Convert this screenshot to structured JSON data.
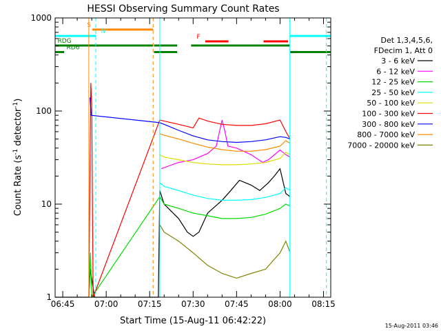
{
  "chart_data": {
    "type": "line",
    "title": "HESSI Observing Summary Count Rates",
    "xlabel": "Start Time (15-Aug-11 06:42:22)",
    "ylabel_main": "Count Rate (s",
    "ylabel_sup1": "-1",
    "ylabel_mid": " detector",
    "ylabel_sup2": "-1",
    "ylabel_end": ")",
    "yscale": "log",
    "ylim": [
      1,
      1000
    ],
    "xlim_minutes": [
      402.37,
      497.5
    ],
    "xticks": [
      {
        "label": "06:45",
        "t": 405
      },
      {
        "label": "07:00",
        "t": 420
      },
      {
        "label": "07:15",
        "t": 435
      },
      {
        "label": "07:30",
        "t": 450
      },
      {
        "label": "07:45",
        "t": 465
      },
      {
        "label": "08:00",
        "t": 480
      },
      {
        "label": "08:15",
        "t": 495
      }
    ],
    "yticks": [
      {
        "label": "1",
        "v": 1
      },
      {
        "label": "10",
        "v": 10
      },
      {
        "label": "100",
        "v": 100
      },
      {
        "label": "1000",
        "v": 1000
      }
    ],
    "legend_title_1": "Det 1,3,4,5,6,",
    "legend_title_2": "FDecim 1, Att 0",
    "series": [
      {
        "name": "3 - 6 keV",
        "color": "#000000",
        "points": [
          [
            402.4,
            1
          ],
          [
            414,
            1
          ],
          [
            414.5,
            2
          ],
          [
            416,
            1
          ],
          [
            416.5,
            1
          ],
          [
            438,
            1
          ],
          [
            438.5,
            14
          ],
          [
            440,
            10
          ],
          [
            445,
            7
          ],
          [
            448,
            5
          ],
          [
            450,
            4.5
          ],
          [
            452,
            5
          ],
          [
            455,
            8
          ],
          [
            460,
            11
          ],
          [
            463,
            14
          ],
          [
            466,
            18
          ],
          [
            470,
            16
          ],
          [
            473,
            14
          ],
          [
            476,
            17
          ],
          [
            478,
            20
          ],
          [
            480,
            24
          ],
          [
            482,
            13
          ],
          [
            483.5,
            12
          ]
        ]
      },
      {
        "name": "6 - 12 keV",
        "color": "#ff00ff",
        "points": [
          [
            439,
            24
          ],
          [
            442,
            26
          ],
          [
            445,
            28
          ],
          [
            450,
            30
          ],
          [
            455,
            35
          ],
          [
            458,
            42
          ],
          [
            460,
            80
          ],
          [
            461,
            60
          ],
          [
            462,
            42
          ],
          [
            465,
            40
          ],
          [
            470,
            34
          ],
          [
            474,
            28
          ],
          [
            476,
            30
          ],
          [
            480,
            38
          ],
          [
            482,
            34
          ],
          [
            483.5,
            32
          ]
        ]
      },
      {
        "name": "12 - 25 keV",
        "color": "#00dd00",
        "points": [
          [
            414,
            1
          ],
          [
            414.6,
            3
          ],
          [
            415,
            1
          ],
          [
            438.5,
            12
          ],
          [
            440,
            10
          ],
          [
            445,
            9
          ],
          [
            450,
            8
          ],
          [
            455,
            7.5
          ],
          [
            460,
            7
          ],
          [
            465,
            7
          ],
          [
            470,
            7.2
          ],
          [
            475,
            7.8
          ],
          [
            480,
            9
          ],
          [
            482,
            10
          ],
          [
            483.5,
            9.5
          ]
        ]
      },
      {
        "name": "25 - 50 keV",
        "color": "#00ffff",
        "points": [
          [
            438.5,
            17
          ],
          [
            440,
            15.5
          ],
          [
            445,
            14
          ],
          [
            450,
            12.5
          ],
          [
            455,
            11.5
          ],
          [
            460,
            11
          ],
          [
            465,
            11
          ],
          [
            470,
            11.2
          ],
          [
            475,
            11.8
          ],
          [
            480,
            13
          ],
          [
            482,
            15
          ],
          [
            483.5,
            14
          ]
        ]
      },
      {
        "name": "50 - 100 keV",
        "color": "#dddd00",
        "points": [
          [
            438.5,
            34
          ],
          [
            440,
            32
          ],
          [
            445,
            30
          ],
          [
            450,
            28
          ],
          [
            455,
            27
          ],
          [
            460,
            26.5
          ],
          [
            465,
            26.5
          ],
          [
            470,
            27
          ],
          [
            475,
            28
          ],
          [
            480,
            31
          ],
          [
            482,
            36
          ],
          [
            483.5,
            34
          ]
        ]
      },
      {
        "name": "100 - 300 keV",
        "color": "#ff0000",
        "points": [
          [
            414,
            1
          ],
          [
            414.7,
            200
          ],
          [
            415,
            120
          ],
          [
            415.5,
            1
          ],
          [
            438.5,
            80
          ],
          [
            440,
            78
          ],
          [
            445,
            72
          ],
          [
            450,
            66
          ],
          [
            452,
            84
          ],
          [
            455,
            78
          ],
          [
            460,
            72
          ],
          [
            465,
            70
          ],
          [
            470,
            70
          ],
          [
            475,
            73
          ],
          [
            480,
            80
          ],
          [
            482,
            60
          ],
          [
            483.5,
            50
          ]
        ]
      },
      {
        "name": "300 - 800 keV",
        "color": "#0000ff",
        "points": [
          [
            414.4,
            140
          ],
          [
            414.8,
            90
          ],
          [
            438.5,
            75
          ],
          [
            440,
            72
          ],
          [
            445,
            62
          ],
          [
            450,
            54
          ],
          [
            455,
            49
          ],
          [
            460,
            47
          ],
          [
            465,
            46
          ],
          [
            470,
            47
          ],
          [
            475,
            49
          ],
          [
            480,
            53
          ],
          [
            482,
            52
          ],
          [
            483.5,
            50
          ]
        ]
      },
      {
        "name": "800 - 7000 keV",
        "color": "#ff8800",
        "points": [
          [
            438.5,
            57
          ],
          [
            440,
            55
          ],
          [
            445,
            50
          ],
          [
            450,
            45
          ],
          [
            455,
            41
          ],
          [
            460,
            38.5
          ],
          [
            465,
            37
          ],
          [
            470,
            37
          ],
          [
            475,
            38.5
          ],
          [
            480,
            42
          ],
          [
            482,
            48
          ],
          [
            483.5,
            45
          ]
        ]
      },
      {
        "name": "7000 - 20000 keV",
        "color": "#808000",
        "points": [
          [
            438.5,
            6
          ],
          [
            440,
            5
          ],
          [
            445,
            4
          ],
          [
            450,
            3
          ],
          [
            455,
            2.2
          ],
          [
            460,
            1.8
          ],
          [
            465,
            1.6
          ],
          [
            470,
            1.8
          ],
          [
            475,
            2
          ],
          [
            480,
            3
          ],
          [
            482,
            4
          ],
          [
            483.5,
            3
          ]
        ]
      }
    ],
    "flags": [
      {
        "label": "S",
        "color": "#ff8800",
        "y": 750,
        "segments": [
          [
            415.2,
            436.2
          ]
        ],
        "label_t": 413.4
      },
      {
        "label": "N",
        "color": "#00ffff",
        "y": 640,
        "segments": [
          [
            402.4,
            416.4
          ],
          [
            483.5,
            497.5
          ]
        ],
        "label_t": 418.2
      },
      {
        "label": "RDG",
        "color": "#008000",
        "y": 505,
        "segments": [
          [
            402.4,
            436.2
          ],
          [
            436.5,
            444.5
          ],
          [
            449.3,
            483.3
          ]
        ],
        "label_t": 403.2
      },
      {
        "label": "RD6",
        "color": "#008000",
        "y": 430,
        "segments": [
          [
            402.4,
            405.5
          ],
          [
            436.5,
            444.5
          ],
          [
            483.5,
            497.5
          ]
        ],
        "label_t": 406.3
      },
      {
        "label": "F",
        "color": "#ff0000",
        "y": 560,
        "segments": [
          [
            454.2,
            462.2
          ],
          [
            474.3,
            482.8
          ]
        ],
        "label_t": 451.2
      }
    ],
    "vlines": [
      {
        "t": 414.0,
        "color": "#ff8800",
        "dash": false
      },
      {
        "t": 416.4,
        "color": "#00ffff",
        "dash": true
      },
      {
        "t": 436.2,
        "color": "#ff8800",
        "dash": true
      },
      {
        "t": 438.5,
        "color": "#00ffff",
        "dash": false
      },
      {
        "t": 483.4,
        "color": "#00ffff",
        "dash": false
      },
      {
        "t": 496.0,
        "color": "#00ffff",
        "dash": true
      }
    ],
    "footer_date": "15-Aug-2011 03:46"
  }
}
